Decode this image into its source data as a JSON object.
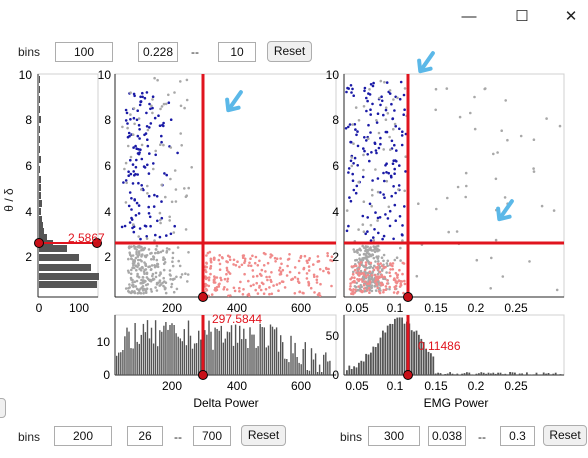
{
  "window": {
    "minimize_icon": "minimize-icon",
    "maximize_icon": "maximize-icon",
    "close_icon": "close-icon",
    "minimize_glyph": "—",
    "maximize_glyph": "☐",
    "close_glyph": "✕"
  },
  "top_controls": {
    "bins_label": "bins",
    "bins": "100",
    "min": "0.228",
    "sep": "--",
    "max": "10",
    "reset": "Reset"
  },
  "bottom_left_controls": {
    "bins_label": "bins",
    "bins": "200",
    "min": "26",
    "sep": "--",
    "max": "700",
    "reset": "Reset"
  },
  "bottom_right_controls": {
    "bins_label": "bins",
    "bins": "300",
    "min": "0.038",
    "sep": "--",
    "max": "0.3",
    "reset": "Reset"
  },
  "colors": {
    "threshold": "#e0141e",
    "wake": "#1a1aa6",
    "nrem": "#a8a8a8",
    "rem_like": "#f08a8a",
    "bar": "#555555",
    "arrow": "#5bb8e8"
  },
  "ratio_hist": {
    "ylabel": "θ / δ",
    "yticks": [
      "2",
      "4",
      "6",
      "8",
      "10"
    ],
    "xticks": [
      "0",
      "100"
    ],
    "threshold_label": "2.5867",
    "threshold_value": 2.5867
  },
  "delta_scatter": {
    "yticks": [
      "2",
      "4",
      "6",
      "8",
      "10"
    ],
    "xticks": [
      "200",
      "400",
      "600"
    ],
    "threshold_x": 297.5844,
    "threshold_y": 2.5867
  },
  "emg_scatter": {
    "yticks": [
      "2",
      "4",
      "6",
      "8",
      "10"
    ],
    "xticks": [
      "0.05",
      "0.1",
      "0.15",
      "0.2",
      "0.25"
    ],
    "threshold_x": 0.11486,
    "threshold_y": 2.5867
  },
  "delta_hist": {
    "yticks": [
      "0",
      "10"
    ],
    "xticks": [
      "200",
      "400",
      "600"
    ],
    "xlabel": "Delta Power",
    "threshold_label": "297.5844"
  },
  "emg_hist": {
    "yticks": [
      "0",
      "50"
    ],
    "xticks": [
      "0.05",
      "0.1",
      "0.15",
      "0.2",
      "0.25"
    ],
    "xlabel": "EMG Power",
    "threshold_label": "0.11486"
  }
}
